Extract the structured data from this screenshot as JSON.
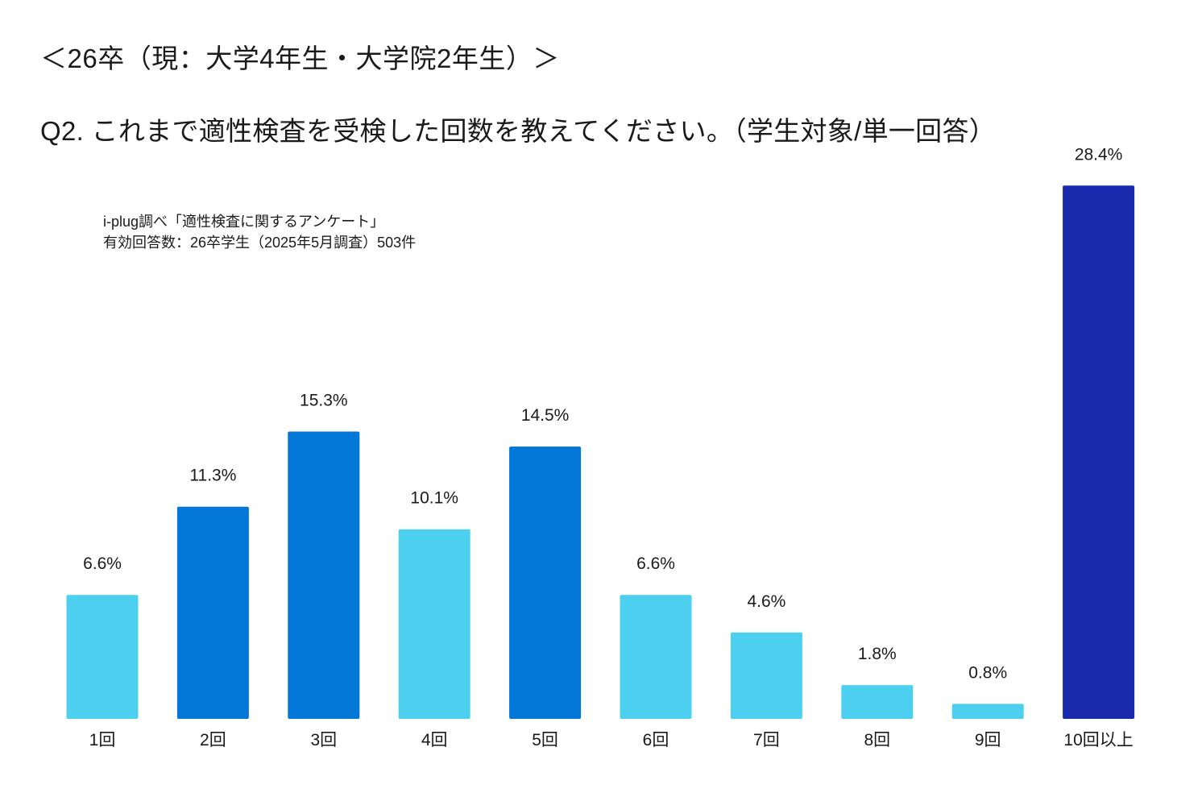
{
  "header": {
    "title": "＜26卒（現：大学4年生・大学院2年生）＞",
    "question": "Q2. これまで適性検査を受検した回数を教えてください。（学生対象/単一回答）"
  },
  "source": {
    "line1": "i-plug調べ「適性検査に関するアンケート」",
    "line2": "有効回答数：26卒学生（2025年5月調査）503件"
  },
  "colors": {
    "light": "#4dd0ef",
    "mid": "#0277d7",
    "dark": "#1a2aad"
  },
  "chart_data": {
    "type": "bar",
    "title": "Q2. これまで適性検査を受検した回数を教えてください。（学生対象/単一回答）",
    "xlabel": "",
    "ylabel": "",
    "ylim": [
      0,
      30
    ],
    "grid": false,
    "legend": "none",
    "categories": [
      "1回",
      "2回",
      "3回",
      "4回",
      "5回",
      "6回",
      "7回",
      "8回",
      "9回",
      "10回以上"
    ],
    "values": [
      6.6,
      11.3,
      15.3,
      10.1,
      14.5,
      6.6,
      4.6,
      1.8,
      0.8,
      28.4
    ],
    "value_labels": [
      "6.6%",
      "11.3%",
      "15.3%",
      "10.1%",
      "14.5%",
      "6.6%",
      "4.6%",
      "1.8%",
      "0.8%",
      "28.4%"
    ],
    "bar_color_keys": [
      "light",
      "mid",
      "mid",
      "light",
      "mid",
      "light",
      "light",
      "light",
      "light",
      "dark"
    ]
  }
}
